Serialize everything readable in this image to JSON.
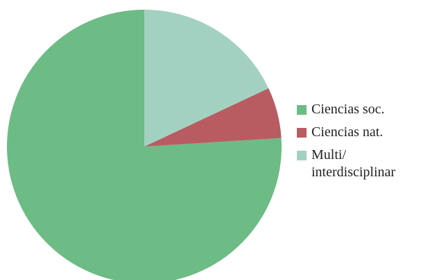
{
  "chart_data": {
    "type": "pie",
    "categories": [
      "Ciencias soc.",
      "Ciencias nat.",
      "Multi/ interdisciplinar"
    ],
    "values": [
      76,
      6,
      18
    ],
    "colors": [
      "#6dbb85",
      "#b85c62",
      "#a2d1c1"
    ],
    "legend": "right"
  }
}
